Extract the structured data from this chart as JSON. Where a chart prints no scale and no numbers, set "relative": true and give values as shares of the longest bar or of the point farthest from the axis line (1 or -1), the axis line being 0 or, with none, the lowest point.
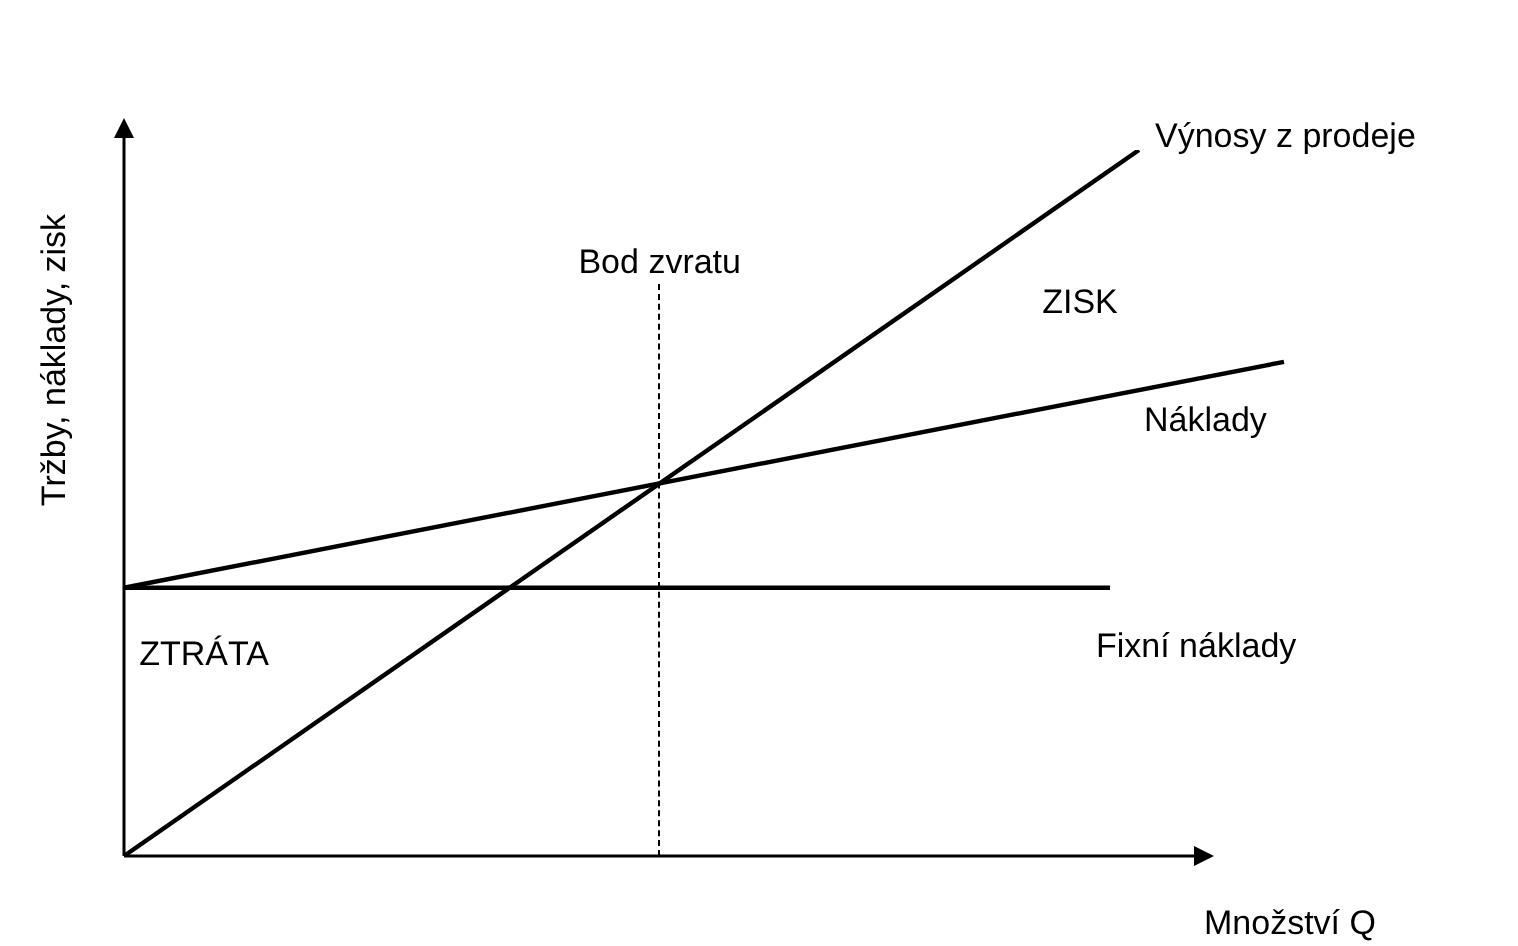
{
  "chart_data": {
    "type": "line",
    "relative": true,
    "xlabel": "Množství Q",
    "ylabel": "Tržby, náklady, zisk",
    "categories": [
      null,
      null,
      null,
      null,
      null,
      null,
      null,
      null,
      null,
      null,
      null,
      null,
      null,
      null,
      null,
      null,
      null,
      null,
      null,
      null,
      null,
      null,
      null,
      null,
      null,
      null,
      null,
      null,
      null,
      null,
      null,
      null,
      null,
      null,
      null,
      null,
      null,
      null,
      null,
      null,
      null
    ],
    "series": [
      {
        "name": "Výnosy z prodeje",
        "color": "#000000",
        "values": [
          0,
          null,
          null,
          null,
          null,
          null,
          null,
          null,
          null,
          null,
          null,
          null,
          null,
          null,
          null,
          null,
          null,
          null,
          null,
          null,
          null,
          null,
          null,
          null,
          null,
          null,
          null,
          null,
          null,
          null,
          null,
          null,
          null,
          null,
          null,
          1,
          null,
          null,
          null,
          null,
          null
        ]
      },
      {
        "name": "Náklady",
        "color": "#000000",
        "values": [
          0.38,
          null,
          null,
          null,
          null,
          null,
          null,
          null,
          null,
          null,
          null,
          null,
          null,
          null,
          null,
          null,
          null,
          null,
          null,
          null,
          null,
          null,
          null,
          null,
          null,
          null,
          null,
          null,
          null,
          null,
          null,
          null,
          null,
          null,
          null,
          null,
          null,
          null,
          null,
          null,
          0.7
        ]
      },
      {
        "name": "Fixní náklady",
        "color": "#000000",
        "values": [
          0.38,
          null,
          null,
          null,
          null,
          null,
          null,
          null,
          null,
          null,
          null,
          null,
          null,
          null,
          null,
          null,
          null,
          null,
          null,
          null,
          null,
          null,
          null,
          null,
          null,
          null,
          null,
          null,
          null,
          null,
          null,
          null,
          null,
          null,
          0.38,
          null,
          null,
          null,
          null,
          null,
          null
        ]
      }
    ],
    "annotations": [
      "Bod zvratu",
      "ZISK",
      "ZTRÁTA"
    ],
    "legend": false,
    "marker": "none",
    "line_style": "solid"
  }
}
